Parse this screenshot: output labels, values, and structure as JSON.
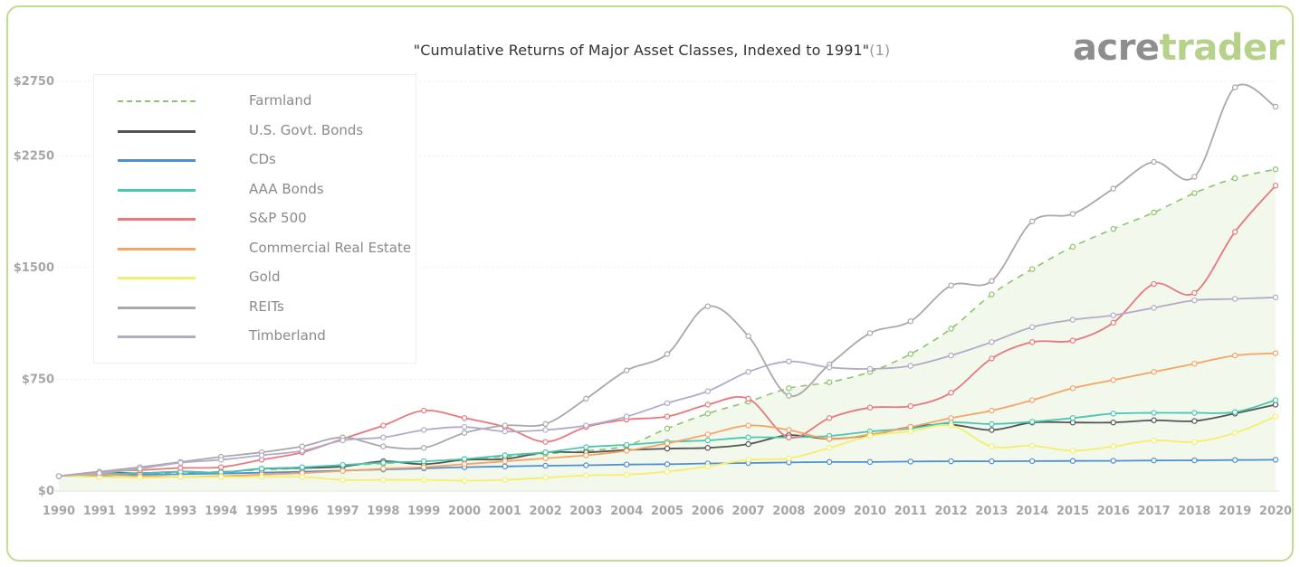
{
  "header": {
    "title": "\"Cumulative Returns of Major Asset Classes, Indexed to 1991\"",
    "title_note": "(1)",
    "logo_part1": "acre",
    "logo_part2": "trader"
  },
  "chart_data": {
    "type": "line",
    "title": "\"Cumulative Returns of Major Asset Classes, Indexed to 1991\"(1)",
    "xlabel": "",
    "ylabel": "",
    "x": [
      "1990",
      "1991",
      "1992",
      "1993",
      "1994",
      "1995",
      "1996",
      "1997",
      "1998",
      "1999",
      "2000",
      "2001",
      "2002",
      "2003",
      "2004",
      "2005",
      "2006",
      "2007",
      "2008",
      "2009",
      "2010",
      "2011",
      "2012",
      "2013",
      "2014",
      "2015",
      "2016",
      "2017",
      "2018",
      "2019",
      "2020"
    ],
    "ylim": [
      0,
      2750
    ],
    "yticks": [
      {
        "value": 0,
        "label": "$0"
      },
      {
        "value": 750,
        "label": "$750"
      },
      {
        "value": 1500,
        "label": "$1500"
      },
      {
        "value": 2250,
        "label": "$2250"
      },
      {
        "value": 2750,
        "label": "$2750"
      }
    ],
    "grid": true,
    "legend_position": "top-left",
    "series": [
      {
        "name": "Farmland",
        "color": "#8cc46a",
        "dashed": true,
        "area_fill": "#eef5e6",
        "values": [
          100,
          105,
          112,
          120,
          130,
          142,
          155,
          170,
          185,
          200,
          215,
          230,
          250,
          270,
          305,
          420,
          520,
          600,
          690,
          730,
          800,
          920,
          1090,
          1320,
          1490,
          1640,
          1760,
          1870,
          2000,
          2100,
          2160
        ]
      },
      {
        "name": "U.S. Govt. Bonds",
        "color": "#555555",
        "values": [
          100,
          125,
          120,
          130,
          125,
          150,
          155,
          165,
          200,
          180,
          210,
          215,
          260,
          260,
          275,
          285,
          290,
          315,
          375,
          350,
          375,
          430,
          445,
          410,
          460,
          460,
          460,
          475,
          470,
          520,
          580
        ]
      },
      {
        "name": "CDs",
        "color": "#4f8fd4",
        "values": [
          100,
          105,
          110,
          113,
          118,
          123,
          130,
          137,
          145,
          152,
          160,
          165,
          170,
          173,
          178,
          180,
          185,
          188,
          192,
          195,
          195,
          198,
          200,
          200,
          201,
          202,
          203,
          205,
          206,
          208,
          210
        ]
      },
      {
        "name": "AAA Bonds",
        "color": "#48c7b3",
        "values": [
          100,
          115,
          120,
          130,
          125,
          150,
          160,
          175,
          190,
          200,
          215,
          240,
          260,
          295,
          310,
          330,
          340,
          360,
          360,
          370,
          400,
          420,
          460,
          450,
          465,
          490,
          520,
          525,
          525,
          530,
          610
        ]
      },
      {
        "name": "S&P 500",
        "color": "#e8787b",
        "values": [
          100,
          130,
          140,
          155,
          160,
          210,
          260,
          350,
          440,
          540,
          490,
          430,
          330,
          430,
          480,
          500,
          580,
          620,
          360,
          490,
          560,
          570,
          660,
          890,
          1000,
          1010,
          1130,
          1390,
          1330,
          1740,
          2050
        ]
      },
      {
        "name": "Commercial Real Estate",
        "color": "#f4a464",
        "values": [
          100,
          110,
          100,
          95,
          100,
          110,
          120,
          135,
          150,
          160,
          180,
          200,
          220,
          240,
          270,
          320,
          380,
          440,
          410,
          350,
          380,
          430,
          490,
          540,
          610,
          690,
          745,
          800,
          855,
          910,
          925
        ]
      },
      {
        "name": "Gold",
        "color": "#f5ee6c",
        "values": [
          100,
          95,
          90,
          95,
          95,
          95,
          95,
          75,
          75,
          75,
          70,
          75,
          90,
          105,
          110,
          130,
          165,
          210,
          220,
          290,
          370,
          400,
          440,
          300,
          305,
          270,
          300,
          340,
          330,
          390,
          500
        ]
      },
      {
        "name": "REITs",
        "color": "#a9a9a9",
        "values": [
          100,
          130,
          160,
          195,
          230,
          260,
          300,
          360,
          300,
          290,
          390,
          440,
          450,
          620,
          810,
          920,
          1240,
          1040,
          640,
          850,
          1060,
          1140,
          1380,
          1410,
          1810,
          1860,
          2030,
          2210,
          2110,
          2710,
          2580
        ]
      },
      {
        "name": "Timberland",
        "color": "#b3aac8",
        "values": [
          100,
          120,
          150,
          190,
          210,
          240,
          270,
          340,
          360,
          410,
          430,
          400,
          410,
          440,
          500,
          590,
          670,
          800,
          870,
          830,
          820,
          840,
          910,
          1000,
          1100,
          1150,
          1180,
          1230,
          1280,
          1290,
          1300
        ]
      }
    ]
  }
}
